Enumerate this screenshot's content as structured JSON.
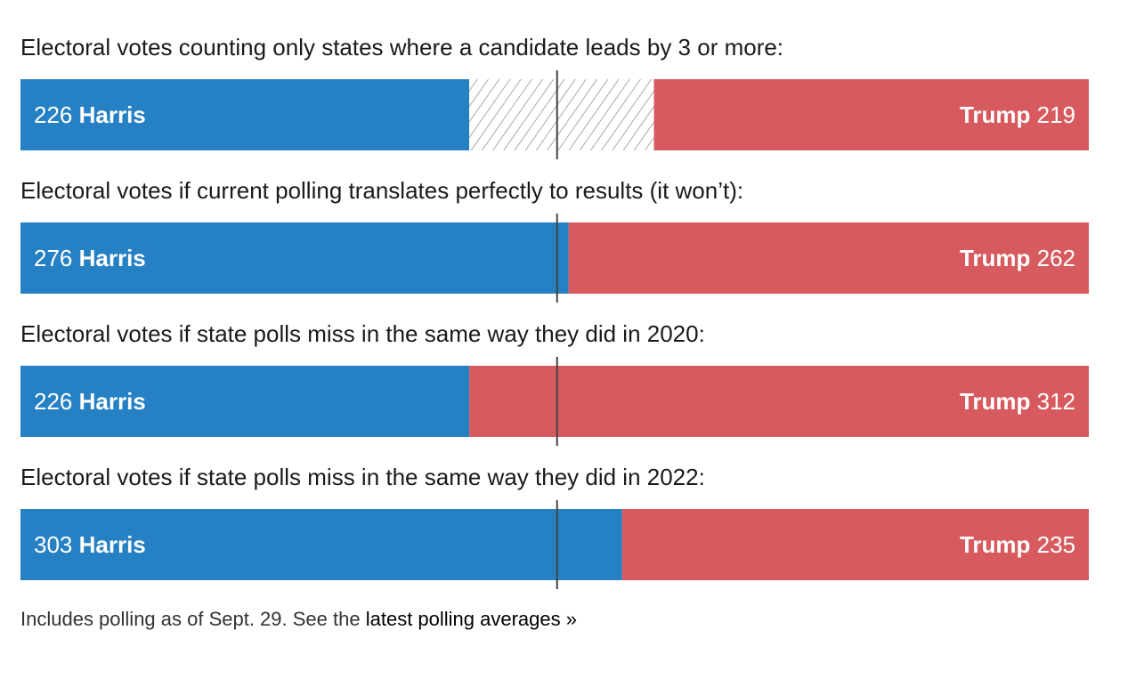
{
  "colors": {
    "harris": "#2680c4",
    "trump": "#d75b5e",
    "tossup_stripe": "#aaaaaa",
    "midline": "#444444"
  },
  "total_electoral_votes": 538,
  "majority_threshold": 270,
  "chart_data": [
    {
      "type": "bar",
      "orientation": "horizontal-stacked",
      "title": "Electoral votes counting only states where a candidate leads by 3 or more:",
      "series": [
        {
          "name": "Harris",
          "value": 226
        },
        {
          "name": "Trump",
          "value": 219
        }
      ],
      "tossup": 93,
      "xlim": [
        0,
        538
      ]
    },
    {
      "type": "bar",
      "orientation": "horizontal-stacked",
      "title": "Electoral votes if current polling translates perfectly to results (it won’t):",
      "series": [
        {
          "name": "Harris",
          "value": 276
        },
        {
          "name": "Trump",
          "value": 262
        }
      ],
      "tossup": 0,
      "xlim": [
        0,
        538
      ]
    },
    {
      "type": "bar",
      "orientation": "horizontal-stacked",
      "title": "Electoral votes if state polls miss in the same way they did in 2020:",
      "series": [
        {
          "name": "Harris",
          "value": 226
        },
        {
          "name": "Trump",
          "value": 312
        }
      ],
      "tossup": 0,
      "xlim": [
        0,
        538
      ]
    },
    {
      "type": "bar",
      "orientation": "horizontal-stacked",
      "title": "Electoral votes if state polls miss in the same way they did in 2022:",
      "series": [
        {
          "name": "Harris",
          "value": 303
        },
        {
          "name": "Trump",
          "value": 235
        }
      ],
      "tossup": 0,
      "xlim": [
        0,
        538
      ]
    }
  ],
  "footnote": {
    "text": "Includes polling as of Sept. 29. See the ",
    "link_text": "latest polling averages »"
  }
}
